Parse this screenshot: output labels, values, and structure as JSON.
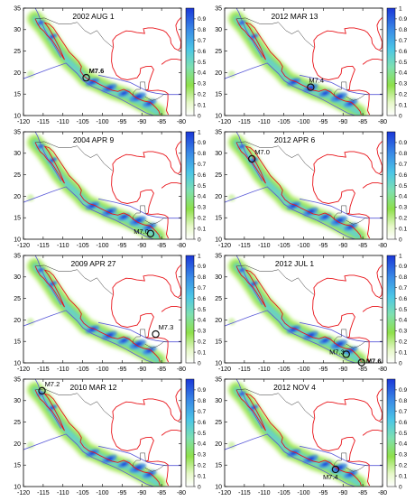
{
  "x_ticks": [
    "-120",
    "-115",
    "-110",
    "-105",
    "-100",
    "-95",
    "-90",
    "-85",
    "-80"
  ],
  "y_ticks": [
    "10",
    "15",
    "20",
    "25",
    "30",
    "35"
  ],
  "colorbar_labels_a": [
    "0",
    "0.1",
    "0.2",
    "0.3",
    "0.4",
    "0.5",
    "0.6",
    "0.7",
    "0.8",
    "0.9"
  ],
  "colorbar_labels_b": [
    "0",
    "0.1",
    "0.2",
    "0.3",
    "0.4",
    "0.5",
    "0.6",
    "0.7",
    "0.8",
    "0.9",
    "1"
  ],
  "colors": {
    "coast": "#e8141a",
    "plate_boundary": "#5a5ad8",
    "border": "#333333",
    "cb_low": "#ffffff",
    "cb_mid": "#7fd83a",
    "cb_high": "#1a37d8",
    "marker": "#111111"
  },
  "panels": [
    {
      "title": "2002 AUG 1",
      "colorbar": "a",
      "events": [
        {
          "label": "M7.6",
          "lon": -104.1,
          "lat": 18.8,
          "bold": true
        }
      ]
    },
    {
      "title": "2012 MAR 13",
      "colorbar": "b",
      "events": [
        {
          "label": "M7.4",
          "lon": -98.2,
          "lat": 16.6,
          "bold": false
        }
      ]
    },
    {
      "title": "2004 APR 9",
      "colorbar": "b",
      "events": [
        {
          "label": "M7.0",
          "lon": -87.8,
          "lat": 11.3,
          "bold": false
        }
      ]
    },
    {
      "title": "2012 APR 6",
      "colorbar": "a",
      "events": [
        {
          "label": "M7.0",
          "lon": -113.1,
          "lat": 28.7,
          "bold": false
        }
      ]
    },
    {
      "title": "2009 APR 27",
      "colorbar": "b",
      "events": [
        {
          "label": "M7.3",
          "lon": -86.5,
          "lat": 16.7,
          "bold": false
        }
      ]
    },
    {
      "title": "2012 JUL 1",
      "colorbar": "b",
      "events": [
        {
          "label": "M7.3",
          "lon": -89.2,
          "lat": 12.0,
          "bold": false
        },
        {
          "label": "M7.6",
          "lon": -85.3,
          "lat": 10.1,
          "bold": true
        }
      ]
    },
    {
      "title": "2010 MAR 12",
      "colorbar": "a",
      "events": [
        {
          "label": "M7.2",
          "lon": -115.3,
          "lat": 32.3,
          "bold": false
        }
      ]
    },
    {
      "title": "2012 NOV 4",
      "colorbar": "a",
      "events": [
        {
          "label": "M7.4",
          "lon": -91.9,
          "lat": 14.0,
          "bold": false
        }
      ]
    }
  ]
}
